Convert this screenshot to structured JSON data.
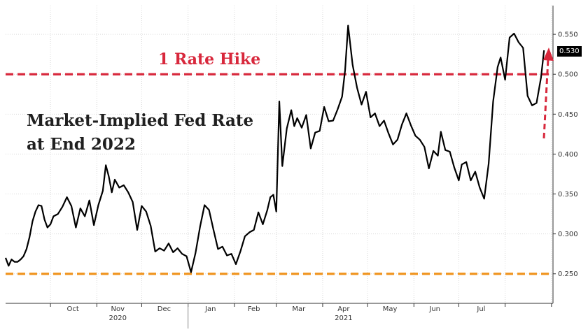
{
  "chart_data": {
    "type": "line",
    "title": "Market-Implied Fed Rate",
    "subtitle": "at End 2022",
    "annotation_top": "1 Rate Hike",
    "last_value_label": "0.530",
    "y_range": [
      0.213,
      0.586
    ],
    "y_ticks": [
      "0.550",
      "0.500",
      "0.450",
      "0.400",
      "0.350",
      "0.300",
      "0.250"
    ],
    "x_month_labels": [
      "Oct",
      "Nov",
      "Dec",
      "Jan",
      "Feb",
      "Mar",
      "Apr",
      "May",
      "Jun",
      "Jul"
    ],
    "x_year_labels": [
      "2020",
      "2021"
    ],
    "reference_lines": [
      {
        "value": 0.5,
        "color": "#d8283c",
        "style": "dashed"
      },
      {
        "value": 0.25,
        "color": "#f0941e",
        "style": "dashed"
      }
    ],
    "series": [
      {
        "color": "#000000",
        "points": [
          [
            "2020-09-01",
            0.27
          ],
          [
            "2020-09-03",
            0.26
          ],
          [
            "2020-09-05",
            0.268
          ],
          [
            "2020-09-07",
            0.265
          ],
          [
            "2020-09-09",
            0.265
          ],
          [
            "2020-09-11",
            0.268
          ],
          [
            "2020-09-13",
            0.272
          ],
          [
            "2020-09-15",
            0.281
          ],
          [
            "2020-09-17",
            0.296
          ],
          [
            "2020-09-19",
            0.316
          ],
          [
            "2020-09-21",
            0.328
          ],
          [
            "2020-09-23",
            0.336
          ],
          [
            "2020-09-25",
            0.335
          ],
          [
            "2020-09-27",
            0.318
          ],
          [
            "2020-09-29",
            0.308
          ],
          [
            "2020-10-01",
            0.312
          ],
          [
            "2020-10-03",
            0.322
          ],
          [
            "2020-10-06",
            0.325
          ],
          [
            "2020-10-09",
            0.334
          ],
          [
            "2020-10-12",
            0.346
          ],
          [
            "2020-10-15",
            0.335
          ],
          [
            "2020-10-18",
            0.308
          ],
          [
            "2020-10-21",
            0.332
          ],
          [
            "2020-10-24",
            0.322
          ],
          [
            "2020-10-27",
            0.342
          ],
          [
            "2020-10-30",
            0.311
          ],
          [
            "2020-11-02",
            0.336
          ],
          [
            "2020-11-05",
            0.354
          ],
          [
            "2020-11-07",
            0.386
          ],
          [
            "2020-11-09",
            0.372
          ],
          [
            "2020-11-11",
            0.352
          ],
          [
            "2020-11-13",
            0.368
          ],
          [
            "2020-11-16",
            0.358
          ],
          [
            "2020-11-19",
            0.361
          ],
          [
            "2020-11-22",
            0.352
          ],
          [
            "2020-11-25",
            0.34
          ],
          [
            "2020-11-28",
            0.305
          ],
          [
            "2020-12-01",
            0.335
          ],
          [
            "2020-12-04",
            0.328
          ],
          [
            "2020-12-07",
            0.31
          ],
          [
            "2020-12-10",
            0.278
          ],
          [
            "2020-12-13",
            0.282
          ],
          [
            "2020-12-16",
            0.279
          ],
          [
            "2020-12-19",
            0.288
          ],
          [
            "2020-12-22",
            0.277
          ],
          [
            "2020-12-25",
            0.282
          ],
          [
            "2020-12-28",
            0.275
          ],
          [
            "2020-12-31",
            0.272
          ],
          [
            "2021-01-03",
            0.252
          ],
          [
            "2021-01-06",
            0.276
          ],
          [
            "2021-01-09",
            0.309
          ],
          [
            "2021-01-12",
            0.336
          ],
          [
            "2021-01-15",
            0.33
          ],
          [
            "2021-01-18",
            0.305
          ],
          [
            "2021-01-21",
            0.281
          ],
          [
            "2021-01-24",
            0.284
          ],
          [
            "2021-01-27",
            0.273
          ],
          [
            "2021-01-30",
            0.275
          ],
          [
            "2021-02-02",
            0.262
          ],
          [
            "2021-02-05",
            0.278
          ],
          [
            "2021-02-08",
            0.297
          ],
          [
            "2021-02-11",
            0.302
          ],
          [
            "2021-02-14",
            0.305
          ],
          [
            "2021-02-17",
            0.327
          ],
          [
            "2021-02-20",
            0.312
          ],
          [
            "2021-02-23",
            0.33
          ],
          [
            "2021-02-25",
            0.346
          ],
          [
            "2021-02-27",
            0.349
          ],
          [
            "2021-03-01",
            0.328
          ],
          [
            "2021-03-03",
            0.466
          ],
          [
            "2021-03-05",
            0.385
          ],
          [
            "2021-03-08",
            0.432
          ],
          [
            "2021-03-11",
            0.455
          ],
          [
            "2021-03-13",
            0.435
          ],
          [
            "2021-03-15",
            0.445
          ],
          [
            "2021-03-18",
            0.433
          ],
          [
            "2021-03-21",
            0.449
          ],
          [
            "2021-03-24",
            0.407
          ],
          [
            "2021-03-27",
            0.427
          ],
          [
            "2021-03-30",
            0.429
          ],
          [
            "2021-04-02",
            0.459
          ],
          [
            "2021-04-05",
            0.441
          ],
          [
            "2021-04-08",
            0.442
          ],
          [
            "2021-04-11",
            0.456
          ],
          [
            "2021-04-14",
            0.472
          ],
          [
            "2021-04-16",
            0.505
          ],
          [
            "2021-04-18",
            0.561
          ],
          [
            "2021-04-21",
            0.512
          ],
          [
            "2021-04-24",
            0.483
          ],
          [
            "2021-04-27",
            0.462
          ],
          [
            "2021-04-30",
            0.478
          ],
          [
            "2021-05-03",
            0.446
          ],
          [
            "2021-05-06",
            0.451
          ],
          [
            "2021-05-09",
            0.435
          ],
          [
            "2021-05-12",
            0.442
          ],
          [
            "2021-05-15",
            0.426
          ],
          [
            "2021-05-18",
            0.412
          ],
          [
            "2021-05-21",
            0.418
          ],
          [
            "2021-05-24",
            0.437
          ],
          [
            "2021-05-27",
            0.451
          ],
          [
            "2021-05-30",
            0.436
          ],
          [
            "2021-06-02",
            0.423
          ],
          [
            "2021-06-05",
            0.418
          ],
          [
            "2021-06-08",
            0.409
          ],
          [
            "2021-06-11",
            0.382
          ],
          [
            "2021-06-14",
            0.404
          ],
          [
            "2021-06-17",
            0.398
          ],
          [
            "2021-06-19",
            0.428
          ],
          [
            "2021-06-22",
            0.405
          ],
          [
            "2021-06-25",
            0.403
          ],
          [
            "2021-06-28",
            0.383
          ],
          [
            "2021-07-01",
            0.367
          ],
          [
            "2021-07-03",
            0.387
          ],
          [
            "2021-07-06",
            0.39
          ],
          [
            "2021-07-09",
            0.367
          ],
          [
            "2021-07-12",
            0.378
          ],
          [
            "2021-07-15",
            0.358
          ],
          [
            "2021-07-18",
            0.344
          ],
          [
            "2021-07-21",
            0.388
          ],
          [
            "2021-07-24",
            0.466
          ],
          [
            "2021-07-27",
            0.509
          ],
          [
            "2021-07-29",
            0.521
          ],
          [
            "2021-08-01",
            0.493
          ],
          [
            "2021-08-04",
            0.546
          ],
          [
            "2021-08-07",
            0.551
          ],
          [
            "2021-08-10",
            0.54
          ],
          [
            "2021-08-13",
            0.533
          ],
          [
            "2021-08-16",
            0.473
          ],
          [
            "2021-08-19",
            0.461
          ],
          [
            "2021-08-22",
            0.464
          ],
          [
            "2021-08-25",
            0.496
          ],
          [
            "2021-08-27",
            0.53
          ]
        ]
      }
    ]
  }
}
